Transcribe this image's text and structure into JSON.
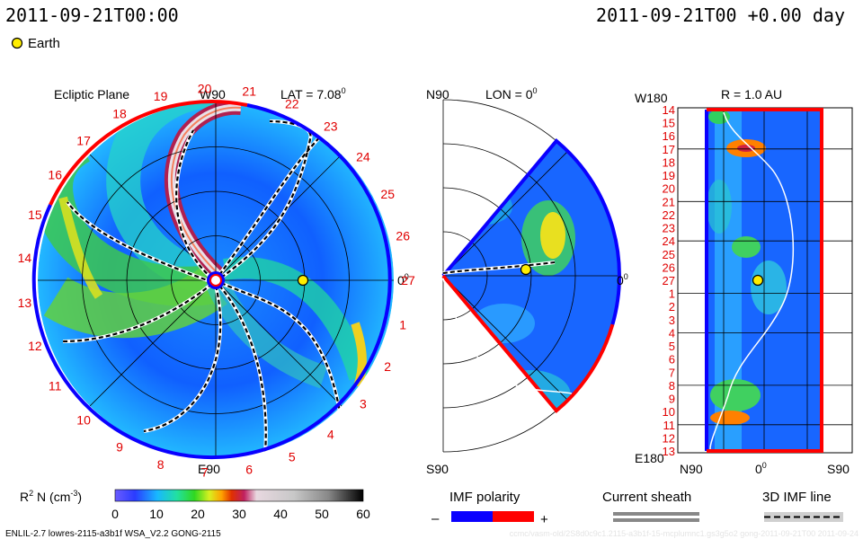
{
  "header": {
    "time_left": "2011-09-21T00:00",
    "time_right": "2011-09-21T00 +0.00 day",
    "earth_legend": "Earth"
  },
  "chart_data": [
    {
      "type": "heatmap",
      "title": "Ecliptic Plane",
      "lat_label": "LAT = 7.08",
      "lat_sup": "0",
      "top_label": "W90",
      "bottom_label": "E90",
      "right_label": "0",
      "right_sup": "0",
      "clock_labels": [
        "1",
        "2",
        "3",
        "4",
        "5",
        "6",
        "7",
        "8",
        "9",
        "10",
        "11",
        "12",
        "13",
        "14",
        "15",
        "16",
        "17",
        "18",
        "19",
        "20",
        "21",
        "22",
        "23",
        "24",
        "25",
        "26",
        "27"
      ],
      "earth": {
        "lon_deg": 0,
        "r_au": 1.0
      }
    },
    {
      "type": "heatmap",
      "title": "LON = 0",
      "title_sup": "0",
      "top_label": "N90",
      "bottom_label": "S90",
      "right_label": "0",
      "right_sup": "0"
    },
    {
      "type": "heatmap",
      "title": "R = 1.0 AU",
      "top_left_label": "W180",
      "bottom_left_label": "E180",
      "x_labels": [
        "N90",
        "0",
        "S90"
      ],
      "x_sup": "0",
      "y_labels": [
        "14",
        "15",
        "16",
        "17",
        "18",
        "19",
        "20",
        "21",
        "22",
        "23",
        "24",
        "25",
        "26",
        "27",
        "1",
        "2",
        "3",
        "4",
        "5",
        "6",
        "7",
        "8",
        "9",
        "10",
        "11",
        "12",
        "13"
      ]
    }
  ],
  "colorbar": {
    "label_main": "R",
    "label_sup": "2",
    "label_rest": " N (cm",
    "label_sup2": "-3",
    "label_end": ")",
    "ticks": [
      "0",
      "10",
      "20",
      "30",
      "40",
      "50",
      "60"
    ],
    "min": 0,
    "max": 60
  },
  "legend": {
    "imf_title": "IMF polarity",
    "imf_minus": "–",
    "imf_plus": "+",
    "sheath_title": "Current sheath",
    "imf3d_title": "3D IMF line",
    "negative_color": "#0a00ff",
    "positive_color": "#ff0000"
  },
  "footer": {
    "left": "ENLIL-2.7 lowres-2115-a3b1f WSA_V2.2 GONG-2115",
    "right": "ccmc/vasm-old/2S8d0c9c1.2115-a3b1f-15-mcplumnc1.gs3g5o2 gong-2011-09-21T00 2011-09-24"
  }
}
